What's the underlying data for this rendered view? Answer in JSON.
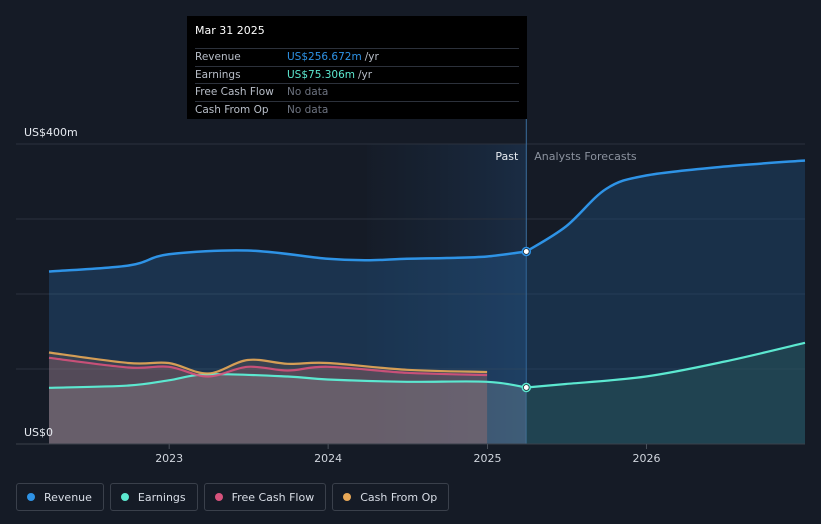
{
  "chart_data": {
    "type": "area",
    "y_axis": {
      "top_label": "US$400m",
      "bottom_label": "US$0",
      "ylim": [
        0,
        400
      ],
      "grid": true
    },
    "x_axis": {
      "tick_labels": [
        "2023",
        "2024",
        "2025",
        "2026"
      ],
      "tick_dates": [
        "2023-01-01",
        "2024-01-01",
        "2025-01-01",
        "2026-01-01"
      ]
    },
    "past_label": "Past",
    "forecast_label": "Analysts Forecasts",
    "divider_date": "2025-03-31",
    "series": [
      {
        "name": "Revenue",
        "color": "#2e93e6",
        "past": [
          [
            "2022-03-31",
            230
          ],
          [
            "2022-09-30",
            238
          ],
          [
            "2022-12-31",
            253
          ],
          [
            "2023-06-30",
            258
          ],
          [
            "2023-12-31",
            247
          ],
          [
            "2024-03-31",
            245
          ],
          [
            "2024-06-30",
            247
          ],
          [
            "2024-09-30",
            248
          ],
          [
            "2024-12-31",
            250
          ],
          [
            "2025-03-31",
            256.672
          ]
        ],
        "forecast": [
          [
            "2025-03-31",
            256.672
          ],
          [
            "2025-06-30",
            290
          ],
          [
            "2025-09-30",
            340
          ],
          [
            "2025-12-31",
            358
          ],
          [
            "2026-06-30",
            370
          ],
          [
            "2026-12-31",
            378
          ]
        ]
      },
      {
        "name": "Earnings",
        "color": "#5ce8d0",
        "past": [
          [
            "2022-03-31",
            75
          ],
          [
            "2022-09-30",
            78
          ],
          [
            "2022-12-31",
            85
          ],
          [
            "2023-03-31",
            93
          ],
          [
            "2023-09-30",
            90
          ],
          [
            "2023-12-31",
            86
          ],
          [
            "2024-06-30",
            83
          ],
          [
            "2024-12-31",
            83
          ],
          [
            "2025-03-31",
            75.306
          ]
        ],
        "forecast": [
          [
            "2025-03-31",
            75.306
          ],
          [
            "2025-06-30",
            80
          ],
          [
            "2025-12-31",
            90
          ],
          [
            "2026-06-30",
            110
          ],
          [
            "2026-12-31",
            135
          ]
        ]
      },
      {
        "name": "Free Cash Flow",
        "color": "#d6527c",
        "past": [
          [
            "2022-03-31",
            115
          ],
          [
            "2022-09-30",
            102
          ],
          [
            "2022-12-31",
            103
          ],
          [
            "2023-03-31",
            90
          ],
          [
            "2023-06-30",
            103
          ],
          [
            "2023-09-30",
            98
          ],
          [
            "2023-12-31",
            103
          ],
          [
            "2024-06-30",
            95
          ],
          [
            "2024-12-31",
            92
          ]
        ],
        "forecast": []
      },
      {
        "name": "Cash From Op",
        "color": "#e8a857",
        "past": [
          [
            "2022-03-31",
            122
          ],
          [
            "2022-09-30",
            108
          ],
          [
            "2022-12-31",
            108
          ],
          [
            "2023-03-31",
            94
          ],
          [
            "2023-06-30",
            112
          ],
          [
            "2023-09-30",
            107
          ],
          [
            "2023-12-31",
            108
          ],
          [
            "2024-06-30",
            99
          ],
          [
            "2024-12-31",
            96
          ]
        ],
        "forecast": []
      }
    ]
  },
  "tooltip": {
    "date": "Mar 31 2025",
    "rows": [
      {
        "label": "Revenue",
        "value": "US$256.672m",
        "unit": "/yr",
        "color": "#2e93e6"
      },
      {
        "label": "Earnings",
        "value": "US$75.306m",
        "unit": "/yr",
        "color": "#5ce8d0"
      },
      {
        "label": "Free Cash Flow",
        "value": "No data",
        "unit": "",
        "color": ""
      },
      {
        "label": "Cash From Op",
        "value": "No data",
        "unit": "",
        "color": ""
      }
    ]
  },
  "legend": [
    {
      "label": "Revenue",
      "color": "#2e93e6"
    },
    {
      "label": "Earnings",
      "color": "#5ce8d0"
    },
    {
      "label": "Free Cash Flow",
      "color": "#d6527c"
    },
    {
      "label": "Cash From Op",
      "color": "#e8a857"
    }
  ]
}
